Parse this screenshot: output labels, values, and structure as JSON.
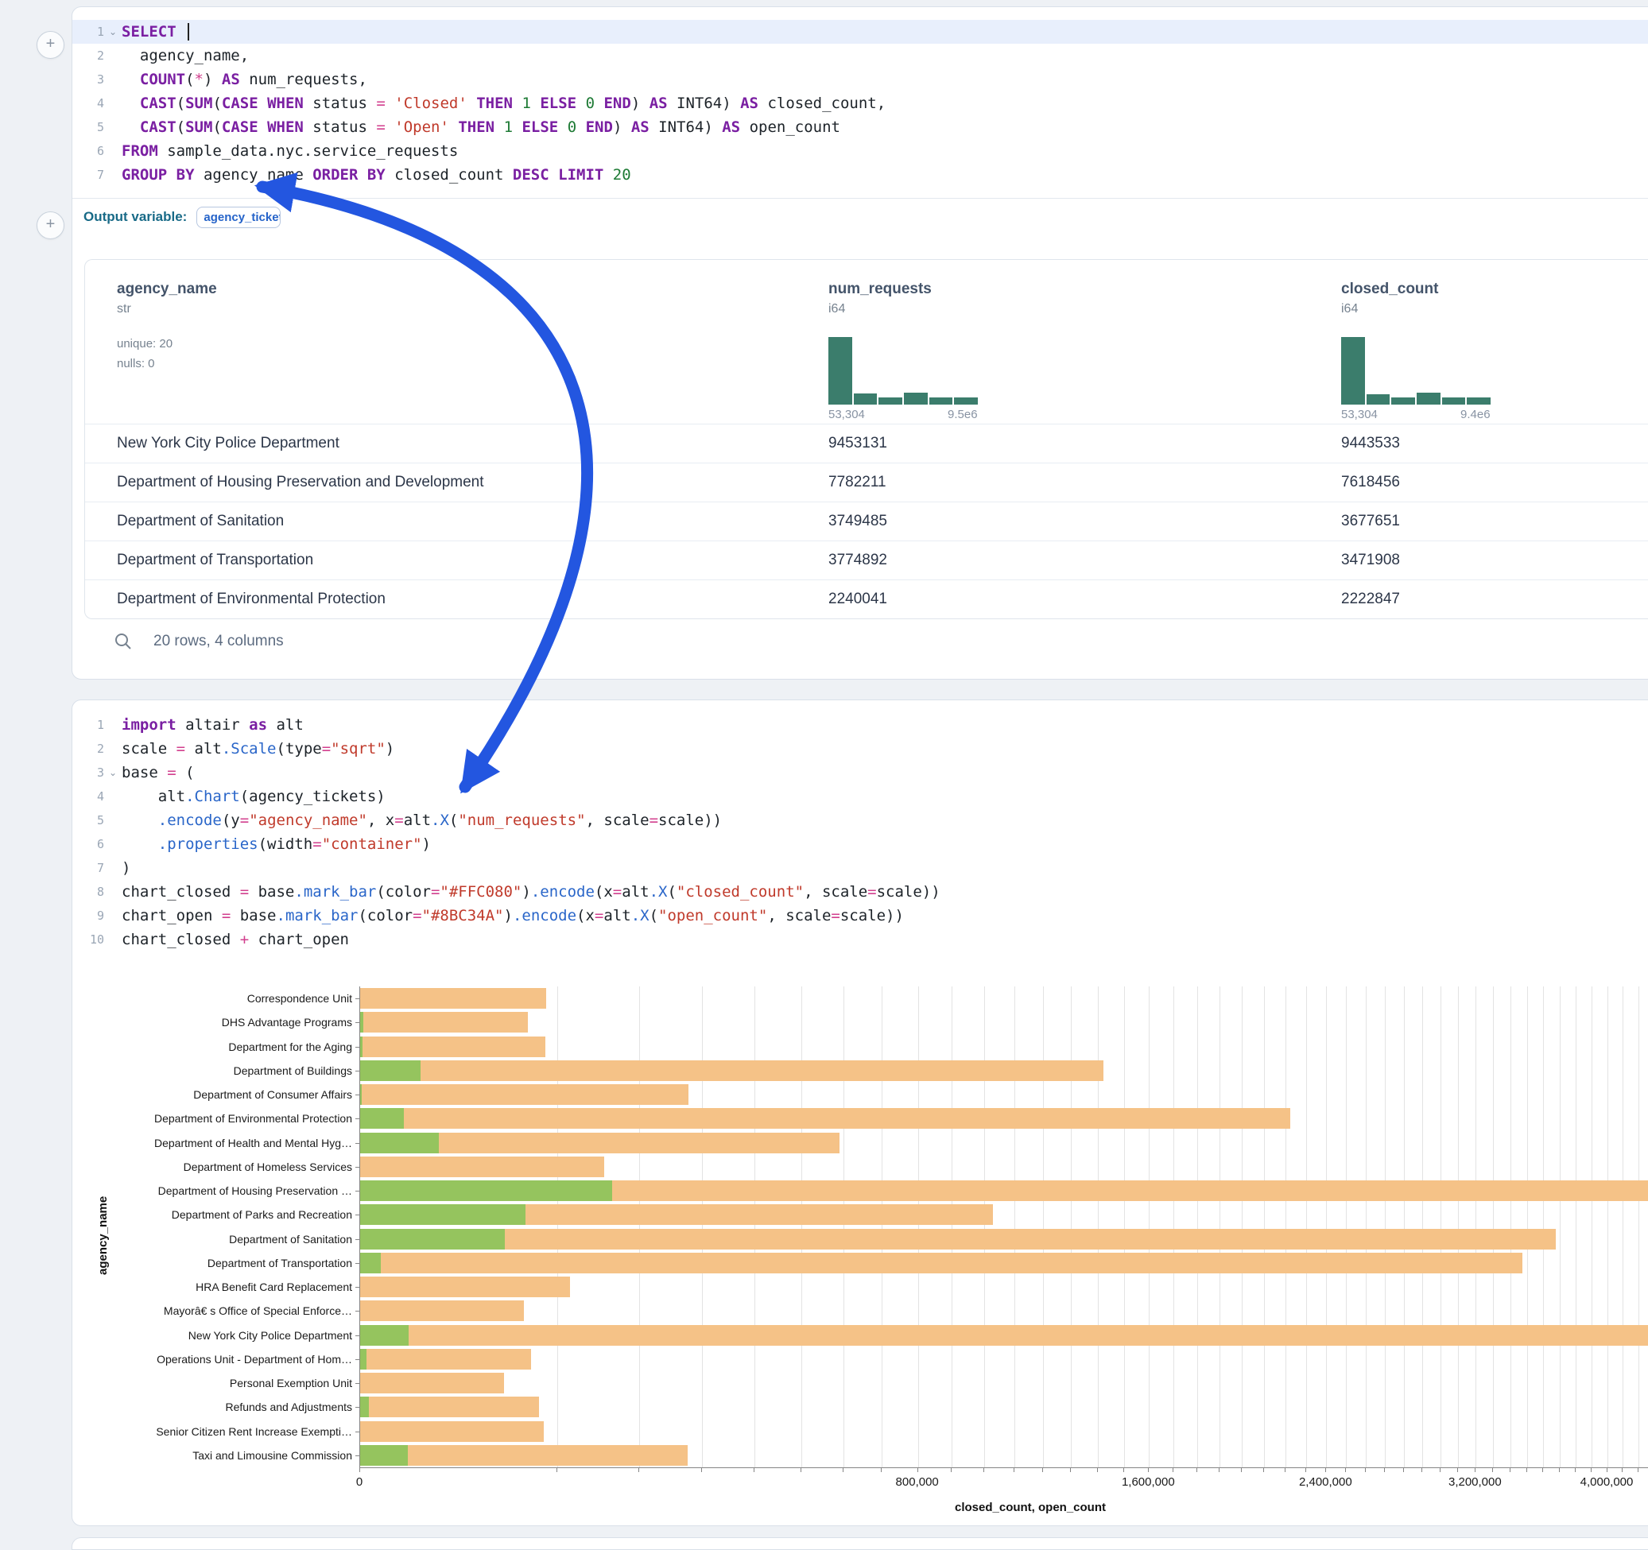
{
  "icons": {
    "add_cell": "+",
    "chevron_down": "⌄"
  },
  "colors": {
    "arrow": "#2356e0",
    "closed_bar": "#f5c287",
    "open_bar": "#95c45e",
    "histogram": "#3b7d6c"
  },
  "sql_cell": {
    "lines": [
      {
        "n": "1",
        "chev": true,
        "hl": true,
        "caret": true,
        "tokens": [
          [
            "kw",
            "SELECT"
          ],
          [
            "plain",
            " "
          ]
        ]
      },
      {
        "n": "2",
        "tokens": [
          [
            "plain",
            "  agency_name,"
          ]
        ]
      },
      {
        "n": "3",
        "tokens": [
          [
            "kw",
            "COUNT"
          ],
          [
            "plain",
            "("
          ],
          [
            "op",
            "*"
          ],
          [
            "plain",
            ") "
          ],
          [
            "kw",
            "AS"
          ],
          [
            "plain",
            " num_requests,"
          ],
          [
            "pre",
            "  "
          ]
        ]
      },
      {
        "n": "4",
        "tokens": [
          [
            "pre",
            "  "
          ],
          [
            "kw",
            "CAST"
          ],
          [
            "plain",
            "("
          ],
          [
            "kw",
            "SUM"
          ],
          [
            "plain",
            "("
          ],
          [
            "kw",
            "CASE WHEN"
          ],
          [
            "plain",
            " status "
          ],
          [
            "op",
            "="
          ],
          [
            "plain",
            " "
          ],
          [
            "str",
            "'Closed'"
          ],
          [
            "plain",
            " "
          ],
          [
            "kw",
            "THEN"
          ],
          [
            "plain",
            " "
          ],
          [
            "num",
            "1"
          ],
          [
            "plain",
            " "
          ],
          [
            "kw",
            "ELSE"
          ],
          [
            "plain",
            " "
          ],
          [
            "num",
            "0"
          ],
          [
            "plain",
            " "
          ],
          [
            "kw",
            "END"
          ],
          [
            "plain",
            ") "
          ],
          [
            "kw",
            "AS"
          ],
          [
            "plain",
            " INT64) "
          ],
          [
            "kw",
            "AS"
          ],
          [
            "plain",
            " closed_count,"
          ]
        ]
      },
      {
        "n": "5",
        "tokens": [
          [
            "pre",
            "  "
          ],
          [
            "kw",
            "CAST"
          ],
          [
            "plain",
            "("
          ],
          [
            "kw",
            "SUM"
          ],
          [
            "plain",
            "("
          ],
          [
            "kw",
            "CASE WHEN"
          ],
          [
            "plain",
            " status "
          ],
          [
            "op",
            "="
          ],
          [
            "plain",
            " "
          ],
          [
            "str",
            "'Open'"
          ],
          [
            "plain",
            " "
          ],
          [
            "kw",
            "THEN"
          ],
          [
            "plain",
            " "
          ],
          [
            "num",
            "1"
          ],
          [
            "plain",
            " "
          ],
          [
            "kw",
            "ELSE"
          ],
          [
            "plain",
            " "
          ],
          [
            "num",
            "0"
          ],
          [
            "plain",
            " "
          ],
          [
            "kw",
            "END"
          ],
          [
            "plain",
            ") "
          ],
          [
            "kw",
            "AS"
          ],
          [
            "plain",
            " INT64) "
          ],
          [
            "kw",
            "AS"
          ],
          [
            "plain",
            " open_count"
          ]
        ]
      },
      {
        "n": "6",
        "tokens": [
          [
            "kw",
            "FROM"
          ],
          [
            "plain",
            " sample_data.nyc.service_requests"
          ]
        ]
      },
      {
        "n": "7",
        "tokens": [
          [
            "kw",
            "GROUP BY"
          ],
          [
            "plain",
            " agency_name "
          ],
          [
            "kw",
            "ORDER BY"
          ],
          [
            "plain",
            " closed_count "
          ],
          [
            "kw",
            "DESC"
          ],
          [
            "plain",
            " "
          ],
          [
            "kw",
            "LIMIT"
          ],
          [
            "plain",
            " "
          ],
          [
            "num",
            "20"
          ]
        ]
      }
    ]
  },
  "output_variable": {
    "label": "Output variable:",
    "value": "agency_tickets"
  },
  "table": {
    "columns": [
      {
        "name": "agency_name",
        "type": "str",
        "meta": [
          "unique: 20",
          "nulls: 0"
        ]
      },
      {
        "name": "num_requests",
        "type": "i64",
        "hist": [
          1,
          0.16,
          0.1,
          0.18,
          0.1,
          0.1
        ],
        "min_label": "53,304",
        "max_label": "9.5e6"
      },
      {
        "name": "closed_count",
        "type": "i64",
        "hist": [
          1,
          0.15,
          0.1,
          0.18,
          0.1,
          0.1
        ],
        "min_label": "53,304",
        "max_label": "9.4e6"
      }
    ],
    "rows": [
      [
        "New York City Police Department",
        "9453131",
        "9443533"
      ],
      [
        "Department of Housing Preservation and Development",
        "7782211",
        "7618456"
      ],
      [
        "Department of Sanitation",
        "3749485",
        "3677651"
      ],
      [
        "Department of Transportation",
        "3774892",
        "3471908"
      ],
      [
        "Department of Environmental Protection",
        "2240041",
        "2222847"
      ]
    ],
    "footer": "20 rows, 4 columns"
  },
  "python_cell": {
    "lines": [
      {
        "n": "1",
        "tokens": [
          [
            "kw",
            "import"
          ],
          [
            "plain",
            " altair "
          ],
          [
            "kw",
            "as"
          ],
          [
            "plain",
            " alt"
          ]
        ]
      },
      {
        "n": "2",
        "tokens": [
          [
            "plain",
            "scale "
          ],
          [
            "op",
            "="
          ],
          [
            "plain",
            " alt"
          ],
          [
            "fn",
            ".Scale"
          ],
          [
            "plain",
            "(type"
          ],
          [
            "op",
            "="
          ],
          [
            "str",
            "\"sqrt\""
          ],
          [
            "plain",
            ")"
          ]
        ]
      },
      {
        "n": "3",
        "chev": true,
        "tokens": [
          [
            "plain",
            "base "
          ],
          [
            "op",
            "="
          ],
          [
            "plain",
            " ("
          ]
        ]
      },
      {
        "n": "4",
        "tokens": [
          [
            "plain",
            "    alt"
          ],
          [
            "fn",
            ".Chart"
          ],
          [
            "plain",
            "(agency_tickets)"
          ]
        ]
      },
      {
        "n": "5",
        "tokens": [
          [
            "plain",
            "    "
          ],
          [
            "fn",
            ".encode"
          ],
          [
            "plain",
            "(y"
          ],
          [
            "op",
            "="
          ],
          [
            "str",
            "\"agency_name\""
          ],
          [
            "plain",
            ", x"
          ],
          [
            "op",
            "="
          ],
          [
            "plain",
            "alt"
          ],
          [
            "fn",
            ".X"
          ],
          [
            "plain",
            "("
          ],
          [
            "str",
            "\"num_requests\""
          ],
          [
            "plain",
            ", scale"
          ],
          [
            "op",
            "="
          ],
          [
            "plain",
            "scale))"
          ]
        ]
      },
      {
        "n": "6",
        "tokens": [
          [
            "plain",
            "    "
          ],
          [
            "fn",
            ".properties"
          ],
          [
            "plain",
            "(width"
          ],
          [
            "op",
            "="
          ],
          [
            "str",
            "\"container\""
          ],
          [
            "plain",
            ")"
          ]
        ]
      },
      {
        "n": "7",
        "tokens": [
          [
            "plain",
            ")"
          ]
        ]
      },
      {
        "n": "8",
        "tokens": [
          [
            "plain",
            "chart_closed "
          ],
          [
            "op",
            "="
          ],
          [
            "plain",
            " base"
          ],
          [
            "fn",
            ".mark_bar"
          ],
          [
            "plain",
            "(color"
          ],
          [
            "op",
            "="
          ],
          [
            "str",
            "\"#FFC080\""
          ],
          [
            "plain",
            ")"
          ],
          [
            "fn",
            ".encode"
          ],
          [
            "plain",
            "(x"
          ],
          [
            "op",
            "="
          ],
          [
            "plain",
            "alt"
          ],
          [
            "fn",
            ".X"
          ],
          [
            "plain",
            "("
          ],
          [
            "str",
            "\"closed_count\""
          ],
          [
            "plain",
            ", scale"
          ],
          [
            "op",
            "="
          ],
          [
            "plain",
            "scale))"
          ]
        ]
      },
      {
        "n": "9",
        "tokens": [
          [
            "plain",
            "chart_open "
          ],
          [
            "op",
            "="
          ],
          [
            "plain",
            " base"
          ],
          [
            "fn",
            ".mark_bar"
          ],
          [
            "plain",
            "(color"
          ],
          [
            "op",
            "="
          ],
          [
            "str",
            "\"#8BC34A\""
          ],
          [
            "plain",
            ")"
          ],
          [
            "fn",
            ".encode"
          ],
          [
            "plain",
            "(x"
          ],
          [
            "op",
            "="
          ],
          [
            "plain",
            "alt"
          ],
          [
            "fn",
            ".X"
          ],
          [
            "plain",
            "("
          ],
          [
            "str",
            "\"open_count\""
          ],
          [
            "plain",
            ", scale"
          ],
          [
            "op",
            "="
          ],
          [
            "plain",
            "scale))"
          ]
        ]
      },
      {
        "n": "10",
        "tokens": [
          [
            "plain",
            "chart_closed "
          ],
          [
            "op",
            "+"
          ],
          [
            "plain",
            " chart_open"
          ]
        ]
      }
    ]
  },
  "chart_data": {
    "type": "bar",
    "orientation": "horizontal",
    "x_scale": "sqrt",
    "title": "",
    "xlabel": "closed_count, open_count",
    "ylabel": "agency_name",
    "x_domain": [
      0,
      4000000
    ],
    "x_major_ticks": [
      0,
      800000,
      1600000,
      2400000,
      3200000,
      4000000
    ],
    "x_minor_step": 100000,
    "grid": true,
    "categories": [
      "Correspondence Unit",
      "DHS Advantage Programs",
      "Department for the Aging",
      "Department of Buildings",
      "Department of Consumer Affairs",
      "Department of Environmental Protection",
      "Department of Health and Mental Hyg…",
      "Department of Homeless Services",
      "Department of Housing Preservation …",
      "Department of Parks and Recreation",
      "Department of Sanitation",
      "Department of Transportation",
      "HRA Benefit Card Replacement",
      "Mayorâ€ s Office of Special Enforce…",
      "New York City Police Department",
      "Operations Unit - Department of Hom…",
      "Personal Exemption Unit",
      "Refunds and Adjustments",
      "Senior Citizen Rent Increase Exempti…",
      "Taxi and Limousine Commission"
    ],
    "series": [
      {
        "name": "closed_count",
        "color": "#f5c287",
        "values": [
          89000,
          72000,
          88000,
          1420000,
          277000,
          2222847,
          590000,
          153000,
          7618456,
          1030000,
          3677651,
          3471908,
          113000,
          69000,
          9443533,
          75000,
          53000,
          82000,
          87000,
          276000
        ]
      },
      {
        "name": "open_count",
        "color": "#95c45e",
        "values": [
          0,
          30,
          15,
          9400,
          10,
          4900,
          15900,
          0,
          163755,
          70000,
          54000,
          1100,
          0,
          0,
          6000,
          100,
          0,
          200,
          0,
          5900
        ]
      }
    ]
  }
}
